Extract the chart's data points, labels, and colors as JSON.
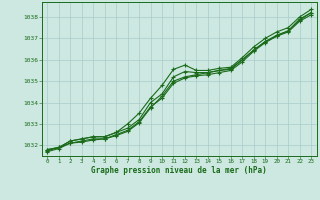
{
  "title": "Graphe pression niveau de la mer (hPa)",
  "bg_color": "#cce8e0",
  "grid_color": "#aacccc",
  "line_color": "#1a6b1a",
  "xlim": [
    -0.5,
    23.5
  ],
  "ylim": [
    1031.5,
    1038.7
  ],
  "yticks": [
    1032,
    1033,
    1034,
    1035,
    1036,
    1037,
    1038
  ],
  "xticks": [
    0,
    1,
    2,
    3,
    4,
    5,
    6,
    7,
    8,
    9,
    10,
    11,
    12,
    13,
    14,
    15,
    16,
    17,
    18,
    19,
    20,
    21,
    22,
    23
  ],
  "series": [
    [
      1031.8,
      1031.9,
      1032.2,
      1032.3,
      1032.4,
      1032.4,
      1032.6,
      1033.0,
      1033.5,
      1034.2,
      1034.8,
      1035.55,
      1035.75,
      1035.5,
      1035.5,
      1035.6,
      1035.65,
      1036.1,
      1036.6,
      1037.0,
      1037.3,
      1037.5,
      1038.0,
      1038.35
    ],
    [
      1031.8,
      1031.9,
      1032.2,
      1032.3,
      1032.4,
      1032.4,
      1032.6,
      1032.8,
      1033.2,
      1034.0,
      1034.4,
      1035.2,
      1035.45,
      1035.4,
      1035.4,
      1035.5,
      1035.55,
      1036.0,
      1036.45,
      1036.85,
      1037.1,
      1037.35,
      1037.9,
      1038.2
    ],
    [
      1031.75,
      1031.9,
      1032.1,
      1032.2,
      1032.3,
      1032.3,
      1032.5,
      1032.7,
      1033.1,
      1033.8,
      1034.2,
      1034.9,
      1035.15,
      1035.25,
      1035.3,
      1035.4,
      1035.5,
      1035.9,
      1036.4,
      1036.8,
      1037.1,
      1037.3,
      1037.8,
      1038.1
    ],
    [
      1031.7,
      1031.85,
      1032.1,
      1032.15,
      1032.25,
      1032.3,
      1032.45,
      1032.65,
      1033.05,
      1033.75,
      1034.3,
      1035.0,
      1035.2,
      1035.3,
      1035.4,
      1035.5,
      1035.6,
      1036.0,
      1036.45,
      1036.85,
      1037.15,
      1037.35,
      1037.85,
      1038.2
    ]
  ]
}
